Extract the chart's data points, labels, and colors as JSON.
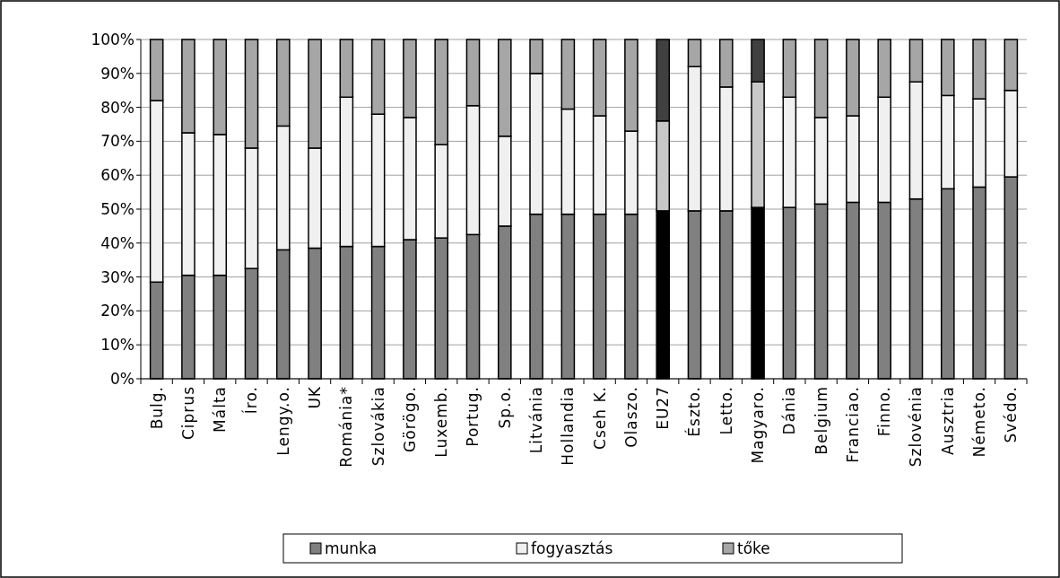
{
  "chart_data": {
    "type": "bar",
    "stacked": true,
    "categories": [
      "Bulg.",
      "Ciprus",
      "Málta",
      "Íro.",
      "Lengy.o.",
      "UK",
      "Románia*",
      "Szlovákia",
      "Görögo.",
      "Luxemb.",
      "Portug.",
      "Sp.o.",
      "Litvánia",
      "Hollandia",
      "Cseh K.",
      "Olaszo.",
      "EU27",
      "Észto.",
      "Letto.",
      "Magyaro.",
      "Dánia",
      "Belgium",
      "Franciao.",
      "Finno.",
      "Szlovénia",
      "Ausztria",
      "Németo.",
      "Svédo."
    ],
    "series": [
      {
        "name": "munka",
        "color": "#808080",
        "colors": [
          "#808080",
          "#808080",
          "#808080",
          "#808080",
          "#808080",
          "#808080",
          "#808080",
          "#808080",
          "#808080",
          "#808080",
          "#808080",
          "#808080",
          "#808080",
          "#808080",
          "#808080",
          "#808080",
          "#000000",
          "#808080",
          "#808080",
          "#000000",
          "#808080",
          "#808080",
          "#808080",
          "#808080",
          "#808080",
          "#808080",
          "#808080",
          "#808080"
        ],
        "values": [
          28.5,
          30.5,
          30.5,
          32.5,
          38,
          38.5,
          39,
          39,
          41,
          41.5,
          42.5,
          45,
          48.5,
          48.5,
          48.5,
          48.5,
          49.5,
          49.5,
          49.5,
          50.5,
          50.5,
          51.5,
          52,
          52,
          53,
          56,
          56.5,
          59.5
        ]
      },
      {
        "name": "fogyasztás",
        "color": "#f0f0f0",
        "colors": [
          "#f0f0f0",
          "#f0f0f0",
          "#f0f0f0",
          "#f0f0f0",
          "#f0f0f0",
          "#f0f0f0",
          "#f0f0f0",
          "#f0f0f0",
          "#f0f0f0",
          "#f0f0f0",
          "#f0f0f0",
          "#f0f0f0",
          "#f0f0f0",
          "#f0f0f0",
          "#f0f0f0",
          "#f0f0f0",
          "#c8c8c8",
          "#f0f0f0",
          "#f0f0f0",
          "#c8c8c8",
          "#f0f0f0",
          "#f0f0f0",
          "#f0f0f0",
          "#f0f0f0",
          "#f0f0f0",
          "#f0f0f0",
          "#f0f0f0",
          "#f0f0f0"
        ],
        "values": [
          53.5,
          42,
          41.5,
          35.5,
          36.5,
          29.5,
          44,
          39,
          36,
          27.5,
          38,
          26.5,
          41.5,
          31,
          29,
          24.5,
          26.5,
          42.5,
          36.5,
          37,
          32.5,
          25.5,
          25.5,
          31,
          34.5,
          27.5,
          26,
          25.5
        ]
      },
      {
        "name": "tőke",
        "color": "#a6a6a6",
        "colors": [
          "#a6a6a6",
          "#a6a6a6",
          "#a6a6a6",
          "#a6a6a6",
          "#a6a6a6",
          "#a6a6a6",
          "#a6a6a6",
          "#a6a6a6",
          "#a6a6a6",
          "#a6a6a6",
          "#a6a6a6",
          "#a6a6a6",
          "#a6a6a6",
          "#a6a6a6",
          "#a6a6a6",
          "#a6a6a6",
          "#404040",
          "#a6a6a6",
          "#a6a6a6",
          "#404040",
          "#a6a6a6",
          "#a6a6a6",
          "#a6a6a6",
          "#a6a6a6",
          "#a6a6a6",
          "#a6a6a6",
          "#a6a6a6",
          "#a6a6a6"
        ],
        "values": [
          18,
          27.5,
          28,
          32,
          25.5,
          32,
          17,
          22,
          23,
          31,
          19.5,
          28.5,
          10,
          20.5,
          22.5,
          27,
          24,
          8,
          14,
          12.5,
          17,
          23,
          22.5,
          17,
          12.5,
          16.5,
          17.5,
          15
        ]
      }
    ],
    "ylim": [
      0,
      100
    ],
    "yticks": [
      {
        "value": 0,
        "label": "0%"
      },
      {
        "value": 10,
        "label": "10%"
      },
      {
        "value": 20,
        "label": "20%"
      },
      {
        "value": 30,
        "label": "30%"
      },
      {
        "value": 40,
        "label": "40%"
      },
      {
        "value": 50,
        "label": "50%"
      },
      {
        "value": 60,
        "label": "60%"
      },
      {
        "value": 70,
        "label": "70%"
      },
      {
        "value": 80,
        "label": "80%"
      },
      {
        "value": 90,
        "label": "90%"
      },
      {
        "value": 100,
        "label": "100%"
      }
    ],
    "grid": "y",
    "legend": "bottom"
  }
}
